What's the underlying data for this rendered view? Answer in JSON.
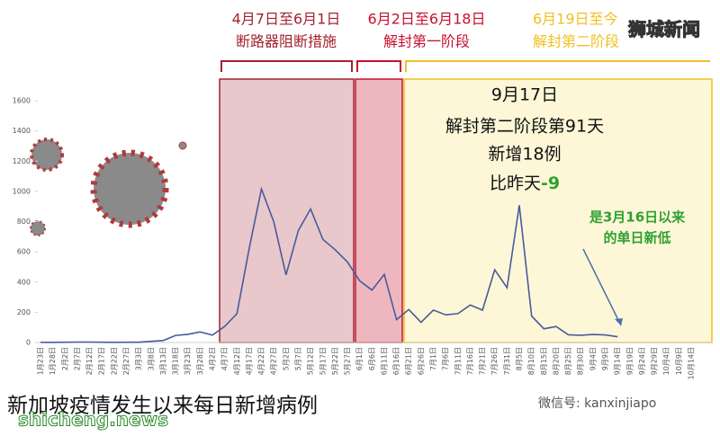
{
  "chart_data": {
    "type": "line",
    "title": "新加坡疫情发生以来每日新增病例",
    "categories": [
      "1月23日",
      "1月28日",
      "2月2日",
      "2月7日",
      "2月12日",
      "2月17日",
      "2月22日",
      "2月27日",
      "3月3日",
      "3月8日",
      "3月13日",
      "3月18日",
      "3月23日",
      "3月28日",
      "4月2日",
      "4月7日",
      "4月12日",
      "4月17日",
      "4月22日",
      "4月27日",
      "5月2日",
      "5月7日",
      "5月12日",
      "5月17日",
      "5月22日",
      "5月27日",
      "6月1日",
      "6月6日",
      "6月11日",
      "6月16日",
      "6月21日",
      "6月26日",
      "7月1日",
      "7月6日",
      "7月11日",
      "7月16日",
      "7月21日",
      "7月26日",
      "7月31日",
      "8月5日",
      "8月10日",
      "8月15日",
      "8月20日",
      "8月25日",
      "8月30日",
      "9月4日",
      "9月9日",
      "9月14日",
      "9月19日",
      "9月24日",
      "9月29日",
      "10月4日",
      "10月9日",
      "10月14日"
    ],
    "series": [
      {
        "color": "#4a5a9c",
        "values": [
          1,
          1,
          2,
          3,
          3,
          2,
          1,
          2,
          2,
          8,
          13,
          47,
          54,
          70,
          49,
          106,
          191,
          623,
          1016,
          799,
          447,
          741,
          884,
          682,
          614,
          533,
          408,
          347,
          451,
          151,
          218,
          133,
          215,
          183,
          191,
          248,
          214,
          481,
          362,
          908,
          175,
          91,
          106,
          51,
          48,
          53,
          50,
          38,
          null,
          null,
          null,
          null,
          null,
          null
        ]
      }
    ],
    "ylim": [
      0,
      1600
    ],
    "yticks": [
      0,
      200,
      400,
      600,
      800,
      1000,
      1200,
      1400,
      1600
    ],
    "grid": false,
    "periods": [
      {
        "title": "4月7日至6月1日",
        "subtitle": "断路器阻断措施",
        "color": "#a3222e"
      },
      {
        "title": "6月2日至6月18日",
        "subtitle": "解封第一阶段",
        "color": "#c8102e"
      },
      {
        "title": "6月19日至今",
        "subtitle": "解封第二阶段",
        "color": "#f0c020"
      }
    ],
    "annotation": {
      "lines": [
        "9月17日",
        "解封第二阶段第91天",
        "新增18例",
        "比昨天"
      ],
      "change": "-9"
    },
    "note": [
      "是3月16日以来",
      "的单日新低"
    ]
  },
  "watermarks": {
    "brand": "狮城新闻",
    "site": "shicheng.news",
    "wechat": "微信号: kanxinjiapo"
  }
}
